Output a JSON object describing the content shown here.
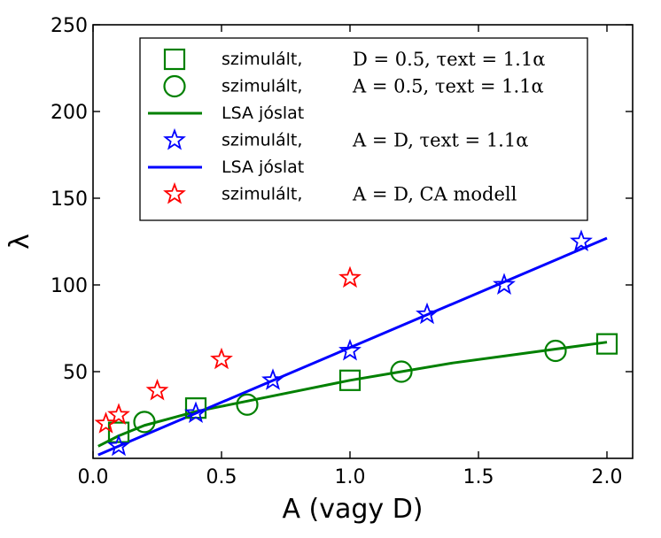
{
  "chart_data": {
    "type": "line",
    "title": "",
    "xlabel": "A (vagy D)",
    "ylabel": "λ",
    "xlim": [
      0.0,
      2.1
    ],
    "ylim": [
      0,
      250
    ],
    "xticks": [
      0.0,
      0.5,
      1.0,
      1.5,
      2.0
    ],
    "xtick_labels": [
      "0.0",
      "0.5",
      "1.0",
      "1.5",
      "2.0"
    ],
    "yticks": [
      50,
      100,
      150,
      200,
      250
    ],
    "ytick_labels": [
      "50",
      "100",
      "150",
      "200",
      "250"
    ],
    "grid": false,
    "legend_position": "top-center",
    "series": [
      {
        "name": "szimulált, D = 0.5, τext = 1.1α",
        "legend_label": "szimulált,",
        "legend_math": "D = 0.5, τext = 1.1α",
        "marker": "square",
        "color": "#008000",
        "kind": "scatter",
        "x": [
          0.1,
          0.4,
          1.0,
          2.0
        ],
        "y": [
          15,
          29,
          45,
          66
        ]
      },
      {
        "name": "szimulált, A = 0.5, τext = 1.1α",
        "legend_label": "szimulált,",
        "legend_math": "A = 0.5, τext = 1.1α",
        "marker": "circle",
        "color": "#008000",
        "kind": "scatter",
        "x": [
          0.2,
          0.6,
          1.2,
          1.8
        ],
        "y": [
          21,
          31,
          50,
          62
        ]
      },
      {
        "name": "LSA jóslat",
        "legend_label": "LSA jóslat",
        "legend_math": "",
        "marker": "none",
        "color": "#008000",
        "kind": "line",
        "x": [
          0.02,
          0.1,
          0.2,
          0.3,
          0.4,
          0.5,
          0.6,
          0.8,
          1.0,
          1.2,
          1.4,
          1.6,
          1.8,
          2.0
        ],
        "y": [
          7,
          13,
          19,
          23,
          27,
          30,
          33,
          39,
          45,
          50,
          55,
          59,
          63,
          67
        ]
      },
      {
        "name": "szimulált, A = D, τext = 1.1α",
        "legend_label": "szimulált,",
        "legend_math": "A = D, τext = 1.1α",
        "marker": "star",
        "color": "#0000ff",
        "kind": "scatter",
        "x": [
          0.1,
          0.4,
          0.7,
          1.0,
          1.3,
          1.6,
          1.9
        ],
        "y": [
          7,
          26,
          45,
          62,
          83,
          100,
          125
        ]
      },
      {
        "name": "LSA jóslat",
        "legend_label": "LSA jóslat",
        "legend_math": "",
        "marker": "none",
        "color": "#0000ff",
        "kind": "line",
        "x": [
          0.02,
          2.0
        ],
        "y": [
          2,
          127
        ]
      },
      {
        "name": "szimulált, A = D, CA modell",
        "legend_label": "szimulált,",
        "legend_math": "A = D, CA modell",
        "marker": "star",
        "color": "#ff0000",
        "kind": "scatter",
        "x": [
          0.05,
          0.1,
          0.25,
          0.5,
          1.0
        ],
        "y": [
          20,
          25,
          39,
          57,
          104
        ]
      }
    ]
  }
}
